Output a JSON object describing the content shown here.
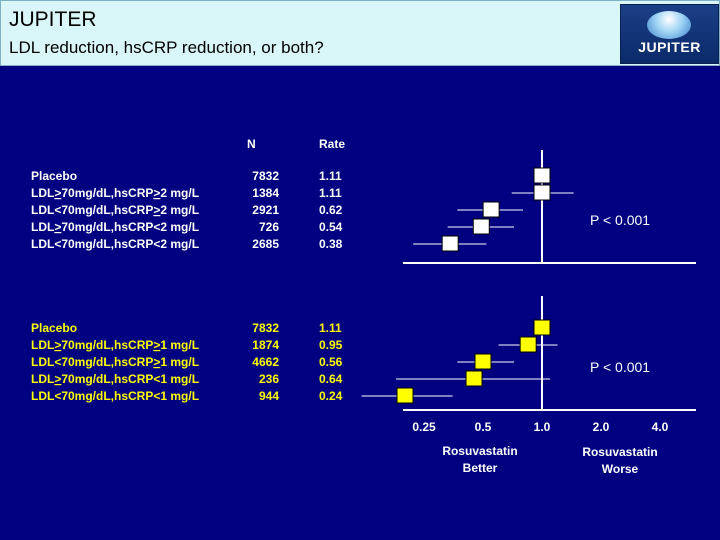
{
  "header": {
    "title": "JUPITER",
    "subtitle": "LDL reduction, hsCRP reduction, or both?",
    "logo_text": "JUPITER"
  },
  "columns": {
    "n": "N",
    "rate": "Rate"
  },
  "colors": {
    "background": "#000080",
    "panel1": "#ffffff",
    "panel2": "#ffff00",
    "header_bg": "#d9f6f8"
  },
  "chart_data": [
    {
      "type": "forest",
      "rows": [
        {
          "label": "Placebo",
          "n": "7832",
          "rate": "1.11",
          "hr": null
        },
        {
          "label": "LDL≥70mg/dL,hsCRP≥2 mg/L",
          "n": "1384",
          "rate": "1.11",
          "hr": 1.0,
          "ci": [
            0.7,
            1.45
          ]
        },
        {
          "label": "LDL<70mg/dL,hsCRP≥2 mg/L",
          "n": "2921",
          "rate": "0.62",
          "hr": 0.55,
          "ci": [
            0.37,
            0.8
          ]
        },
        {
          "label": "LDL≥70mg/dL,hsCRP<2 mg/L",
          "n": "726",
          "rate": "0.54",
          "hr": 0.49,
          "ci": [
            0.33,
            0.72
          ]
        },
        {
          "label": "LDL<70mg/dL,hsCRP<2 mg/L",
          "n": "2685",
          "rate": "0.38",
          "hr": 0.34,
          "ci": [
            0.22,
            0.52
          ]
        }
      ],
      "annotation": "P < 0.001"
    },
    {
      "type": "forest",
      "rows": [
        {
          "label": "Placebo",
          "n": "7832",
          "rate": "1.11",
          "hr": null
        },
        {
          "label": "LDL≥70mg/dL,hsCRP≥1 mg/L",
          "n": "1874",
          "rate": "0.95",
          "hr": 0.85,
          "ci": [
            0.6,
            1.2
          ]
        },
        {
          "label": "LDL<70mg/dL,hsCRP≥1 mg/L",
          "n": "4662",
          "rate": "0.56",
          "hr": 0.5,
          "ci": [
            0.37,
            0.72
          ]
        },
        {
          "label": "LDL≥70mg/dL,hsCRP<1 mg/L",
          "n": "236",
          "rate": "0.64",
          "hr": 0.45,
          "ci": [
            0.18,
            1.1
          ]
        },
        {
          "label": "LDL<70mg/dL,hsCRP<1 mg/L",
          "n": "944",
          "rate": "0.24",
          "hr": 0.2,
          "ci": [
            0.12,
            0.35
          ]
        }
      ],
      "annotation": "P < 0.001"
    }
  ],
  "axis": {
    "scale": "log",
    "ticks": [
      {
        "label": "0.25",
        "value": 0.25
      },
      {
        "label": "0.5",
        "value": 0.5
      },
      {
        "label": "1.0",
        "value": 1.0
      },
      {
        "label": "2.0",
        "value": 2.0
      },
      {
        "label": "4.0",
        "value": 4.0
      }
    ],
    "left_label": [
      "Rosuvastatin",
      "Better"
    ],
    "right_label": [
      "Rosuvastatin",
      "Worse"
    ]
  }
}
